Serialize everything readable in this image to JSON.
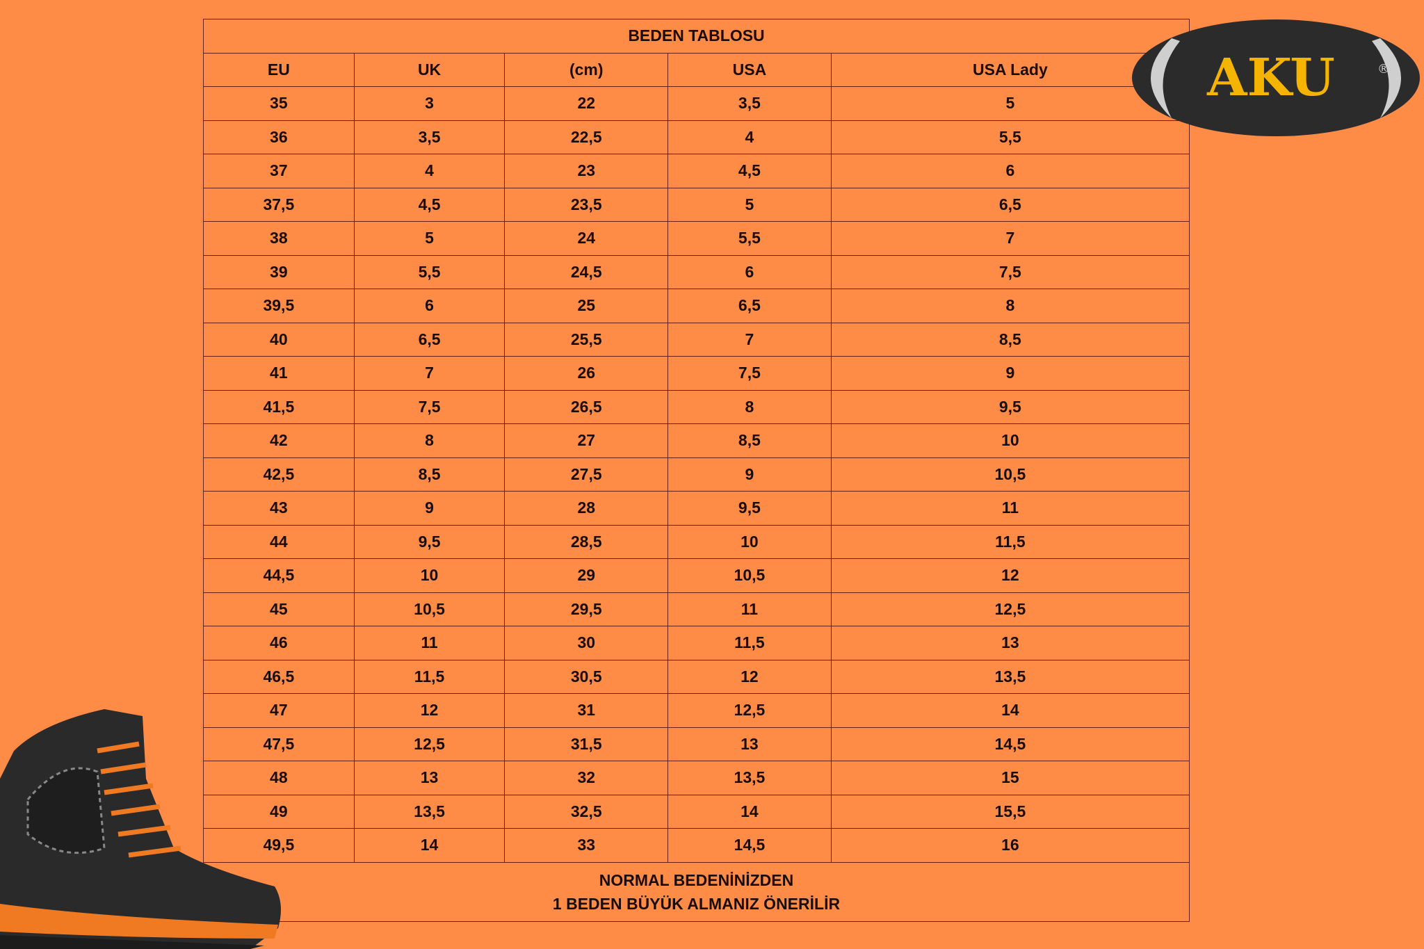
{
  "table": {
    "title": "BEDEN TABLOSU",
    "columns": [
      "EU",
      "UK",
      "(cm)",
      "USA",
      "USA Lady"
    ],
    "rows": [
      [
        "35",
        "3",
        "22",
        "3,5",
        "5"
      ],
      [
        "36",
        "3,5",
        "22,5",
        "4",
        "5,5"
      ],
      [
        "37",
        "4",
        "23",
        "4,5",
        "6"
      ],
      [
        "37,5",
        "4,5",
        "23,5",
        "5",
        "6,5"
      ],
      [
        "38",
        "5",
        "24",
        "5,5",
        "7"
      ],
      [
        "39",
        "5,5",
        "24,5",
        "6",
        "7,5"
      ],
      [
        "39,5",
        "6",
        "25",
        "6,5",
        "8"
      ],
      [
        "40",
        "6,5",
        "25,5",
        "7",
        "8,5"
      ],
      [
        "41",
        "7",
        "26",
        "7,5",
        "9"
      ],
      [
        "41,5",
        "7,5",
        "26,5",
        "8",
        "9,5"
      ],
      [
        "42",
        "8",
        "27",
        "8,5",
        "10"
      ],
      [
        "42,5",
        "8,5",
        "27,5",
        "9",
        "10,5"
      ],
      [
        "43",
        "9",
        "28",
        "9,5",
        "11"
      ],
      [
        "44",
        "9,5",
        "28,5",
        "10",
        "11,5"
      ],
      [
        "44,5",
        "10",
        "29",
        "10,5",
        "12"
      ],
      [
        "45",
        "10,5",
        "29,5",
        "11",
        "12,5"
      ],
      [
        "46",
        "11",
        "30",
        "11,5",
        "13"
      ],
      [
        "46,5",
        "11,5",
        "30,5",
        "12",
        "13,5"
      ],
      [
        "47",
        "12",
        "31",
        "12,5",
        "14"
      ],
      [
        "47,5",
        "12,5",
        "31,5",
        "13",
        "14,5"
      ],
      [
        "48",
        "13",
        "32",
        "13,5",
        "15"
      ],
      [
        "49",
        "13,5",
        "32,5",
        "14",
        "15,5"
      ],
      [
        "49,5",
        "14",
        "33",
        "14,5",
        "16"
      ]
    ],
    "footer_line1": "NORMAL BEDENİNİZDEN",
    "footer_line2": "1 BEDEN BÜYÜK ALMANIZ ÖNERİLİR"
  },
  "logo": {
    "text": "AKU",
    "registered": "®"
  },
  "colors": {
    "background": "#fe8c47",
    "border": "#6b1f10",
    "logo_dark": "#2b2b2b",
    "logo_yellow": "#f5b400",
    "logo_grey": "#cfcfcf"
  }
}
